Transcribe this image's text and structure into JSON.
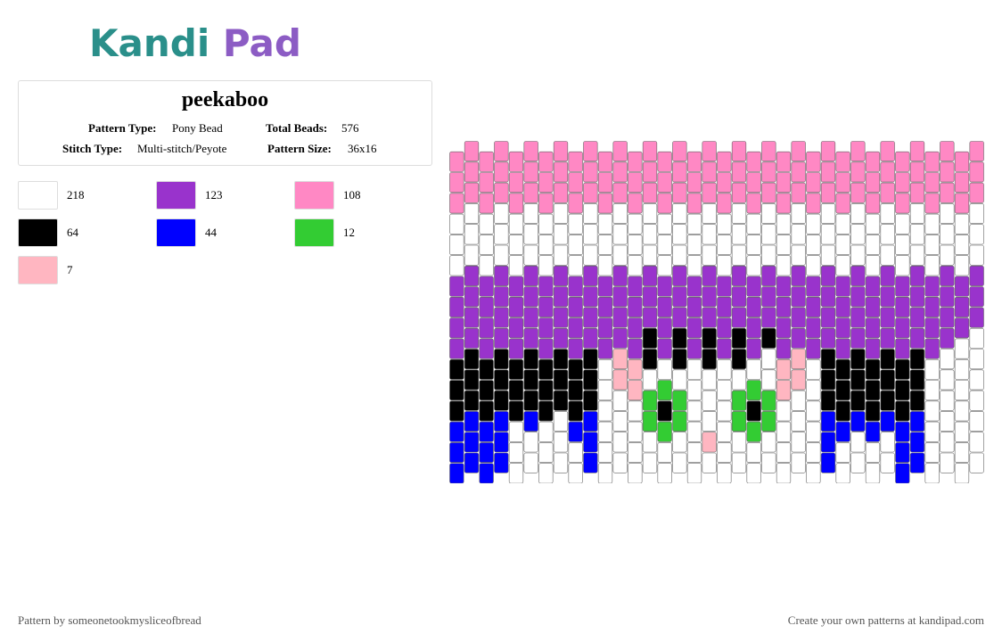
{
  "header": {
    "logo": "Kandi Pad"
  },
  "info": {
    "title": "peekaboo",
    "pattern_type_label": "Pattern Type:",
    "pattern_type": "Pony Bead",
    "total_beads_label": "Total Beads:",
    "total_beads": "576",
    "stitch_type_label": "Stitch Type:",
    "stitch_type": "Multi-stitch/Peyote",
    "pattern_size_label": "Pattern Size:",
    "pattern_size": "36x16"
  },
  "legend": [
    {
      "color": "#ffffff",
      "count": 218
    },
    {
      "color": "#9933cc",
      "count": 123
    },
    {
      "color": "#ff88c4",
      "count": 108
    },
    {
      "color": "#000000",
      "count": 64
    },
    {
      "color": "#0000ff",
      "count": 44
    },
    {
      "color": "#33cc33",
      "count": 12
    },
    {
      "color": "#ffb6c1",
      "count": 7
    }
  ],
  "footer": {
    "credit": "Pattern by someonetookmysliceofbread",
    "link": "Create your own patterns at kandipad.com"
  }
}
